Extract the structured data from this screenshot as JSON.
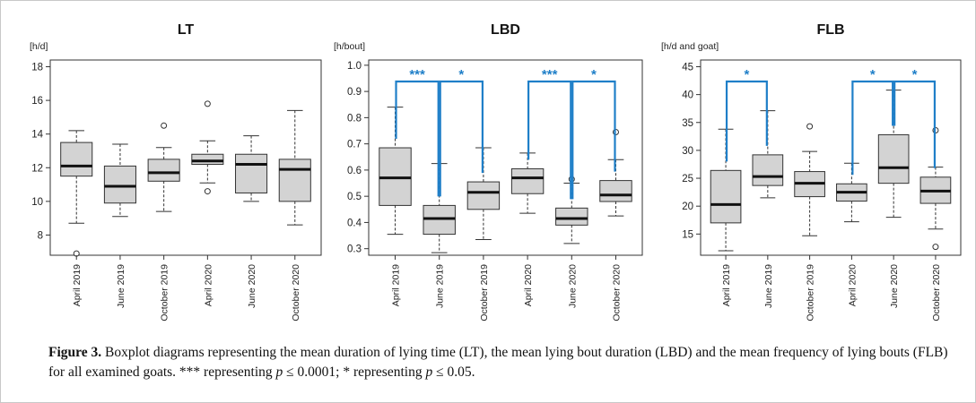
{
  "chart_data": [
    {
      "type": "boxplot",
      "title": "LT",
      "ylabel": "[h/d]",
      "ylim": [
        6.8,
        18.4
      ],
      "yticks": [
        "8",
        "10",
        "12",
        "14",
        "16",
        "18"
      ],
      "categories": [
        "April 2019",
        "June 2019",
        "October 2019",
        "April 2020",
        "June 2020",
        "October 2020"
      ],
      "box_color": "#d3d3d3",
      "boxes": [
        {
          "whisker_low": 8.7,
          "q1": 11.5,
          "median": 12.1,
          "q3": 13.5,
          "whisker_high": 14.2,
          "outliers": [
            6.9
          ]
        },
        {
          "whisker_low": 9.1,
          "q1": 9.9,
          "median": 10.9,
          "q3": 12.1,
          "whisker_high": 13.4,
          "outliers": []
        },
        {
          "whisker_low": 9.4,
          "q1": 11.2,
          "median": 11.7,
          "q3": 12.5,
          "whisker_high": 13.2,
          "outliers": [
            14.5
          ]
        },
        {
          "whisker_low": 11.1,
          "q1": 12.2,
          "median": 12.4,
          "q3": 12.8,
          "whisker_high": 13.6,
          "outliers": [
            15.8,
            10.6
          ]
        },
        {
          "whisker_low": 10.0,
          "q1": 10.5,
          "median": 12.2,
          "q3": 12.8,
          "whisker_high": 13.9,
          "outliers": []
        },
        {
          "whisker_low": 8.6,
          "q1": 10.0,
          "median": 11.9,
          "q3": 12.5,
          "whisker_high": 15.4,
          "outliers": []
        }
      ],
      "significance": []
    },
    {
      "type": "boxplot",
      "title": "LBD",
      "ylabel": "[h/bout]",
      "ylim": [
        0.275,
        1.02
      ],
      "yticks": [
        "0.3",
        "0.4",
        "0.5",
        "0.6",
        "0.7",
        "0.8",
        "0.9",
        "1.0"
      ],
      "categories": [
        "April 2019",
        "June 2019",
        "October 2019",
        "April 2020",
        "June 2020",
        "October 2020"
      ],
      "box_color": "#d3d3d3",
      "boxes": [
        {
          "whisker_low": 0.355,
          "q1": 0.465,
          "median": 0.57,
          "q3": 0.685,
          "whisker_high": 0.84,
          "outliers": []
        },
        {
          "whisker_low": 0.285,
          "q1": 0.355,
          "median": 0.415,
          "q3": 0.465,
          "whisker_high": 0.625,
          "outliers": []
        },
        {
          "whisker_low": 0.335,
          "q1": 0.45,
          "median": 0.515,
          "q3": 0.555,
          "whisker_high": 0.685,
          "outliers": []
        },
        {
          "whisker_low": 0.435,
          "q1": 0.51,
          "median": 0.57,
          "q3": 0.605,
          "whisker_high": 0.665,
          "outliers": []
        },
        {
          "whisker_low": 0.32,
          "q1": 0.39,
          "median": 0.415,
          "q3": 0.455,
          "whisker_high": 0.55,
          "outliers": [
            0.565
          ]
        },
        {
          "whisker_low": 0.425,
          "q1": 0.48,
          "median": 0.505,
          "q3": 0.56,
          "whisker_high": 0.64,
          "outliers": [
            0.745
          ]
        }
      ],
      "significance": [
        {
          "from": 0,
          "to": 1,
          "label": "***"
        },
        {
          "from": 1,
          "to": 2,
          "label": "*"
        },
        {
          "from": 3,
          "to": 4,
          "label": "***"
        },
        {
          "from": 4,
          "to": 5,
          "label": "*"
        }
      ],
      "bracket_color": "#1f7fc8"
    },
    {
      "type": "boxplot",
      "title": "FLB",
      "ylabel": "[h/d and goat]",
      "ylim": [
        11.2,
        46.2
      ],
      "yticks": [
        "15",
        "20",
        "25",
        "30",
        "35",
        "40",
        "45"
      ],
      "categories": [
        "April 2019",
        "June 2019",
        "October 2019",
        "April 2020",
        "June 2020",
        "October 2020"
      ],
      "box_color": "#d3d3d3",
      "boxes": [
        {
          "whisker_low": 12.0,
          "q1": 17.0,
          "median": 20.3,
          "q3": 26.4,
          "whisker_high": 33.8,
          "outliers": []
        },
        {
          "whisker_low": 21.5,
          "q1": 23.7,
          "median": 25.3,
          "q3": 29.2,
          "whisker_high": 37.1,
          "outliers": []
        },
        {
          "whisker_low": 14.7,
          "q1": 21.7,
          "median": 24.1,
          "q3": 26.2,
          "whisker_high": 29.8,
          "outliers": [
            34.3
          ]
        },
        {
          "whisker_low": 17.2,
          "q1": 20.9,
          "median": 22.5,
          "q3": 24.0,
          "whisker_high": 27.7,
          "outliers": []
        },
        {
          "whisker_low": 18.0,
          "q1": 24.1,
          "median": 26.9,
          "q3": 32.8,
          "whisker_high": 40.8,
          "outliers": []
        },
        {
          "whisker_low": 15.9,
          "q1": 20.5,
          "median": 22.7,
          "q3": 25.2,
          "whisker_high": 27.0,
          "outliers": [
            33.6,
            12.7
          ]
        }
      ],
      "significance": [
        {
          "from": 0,
          "to": 1,
          "label": "*"
        },
        {
          "from": 3,
          "to": 4,
          "label": "*"
        },
        {
          "from": 4,
          "to": 5,
          "label": "*"
        }
      ],
      "bracket_color": "#1f7fc8"
    }
  ],
  "caption": {
    "label": "Figure 3.",
    "text_1": " Boxplot diagrams representing the mean duration of lying time (LT), the mean lying bout duration (LBD) and the mean frequency of lying bouts (FLB) for all examined goats. *** representing ",
    "p": "p",
    "text_2": " ≤ 0.0001; * representing ",
    "text_3": " ≤ 0.05."
  }
}
